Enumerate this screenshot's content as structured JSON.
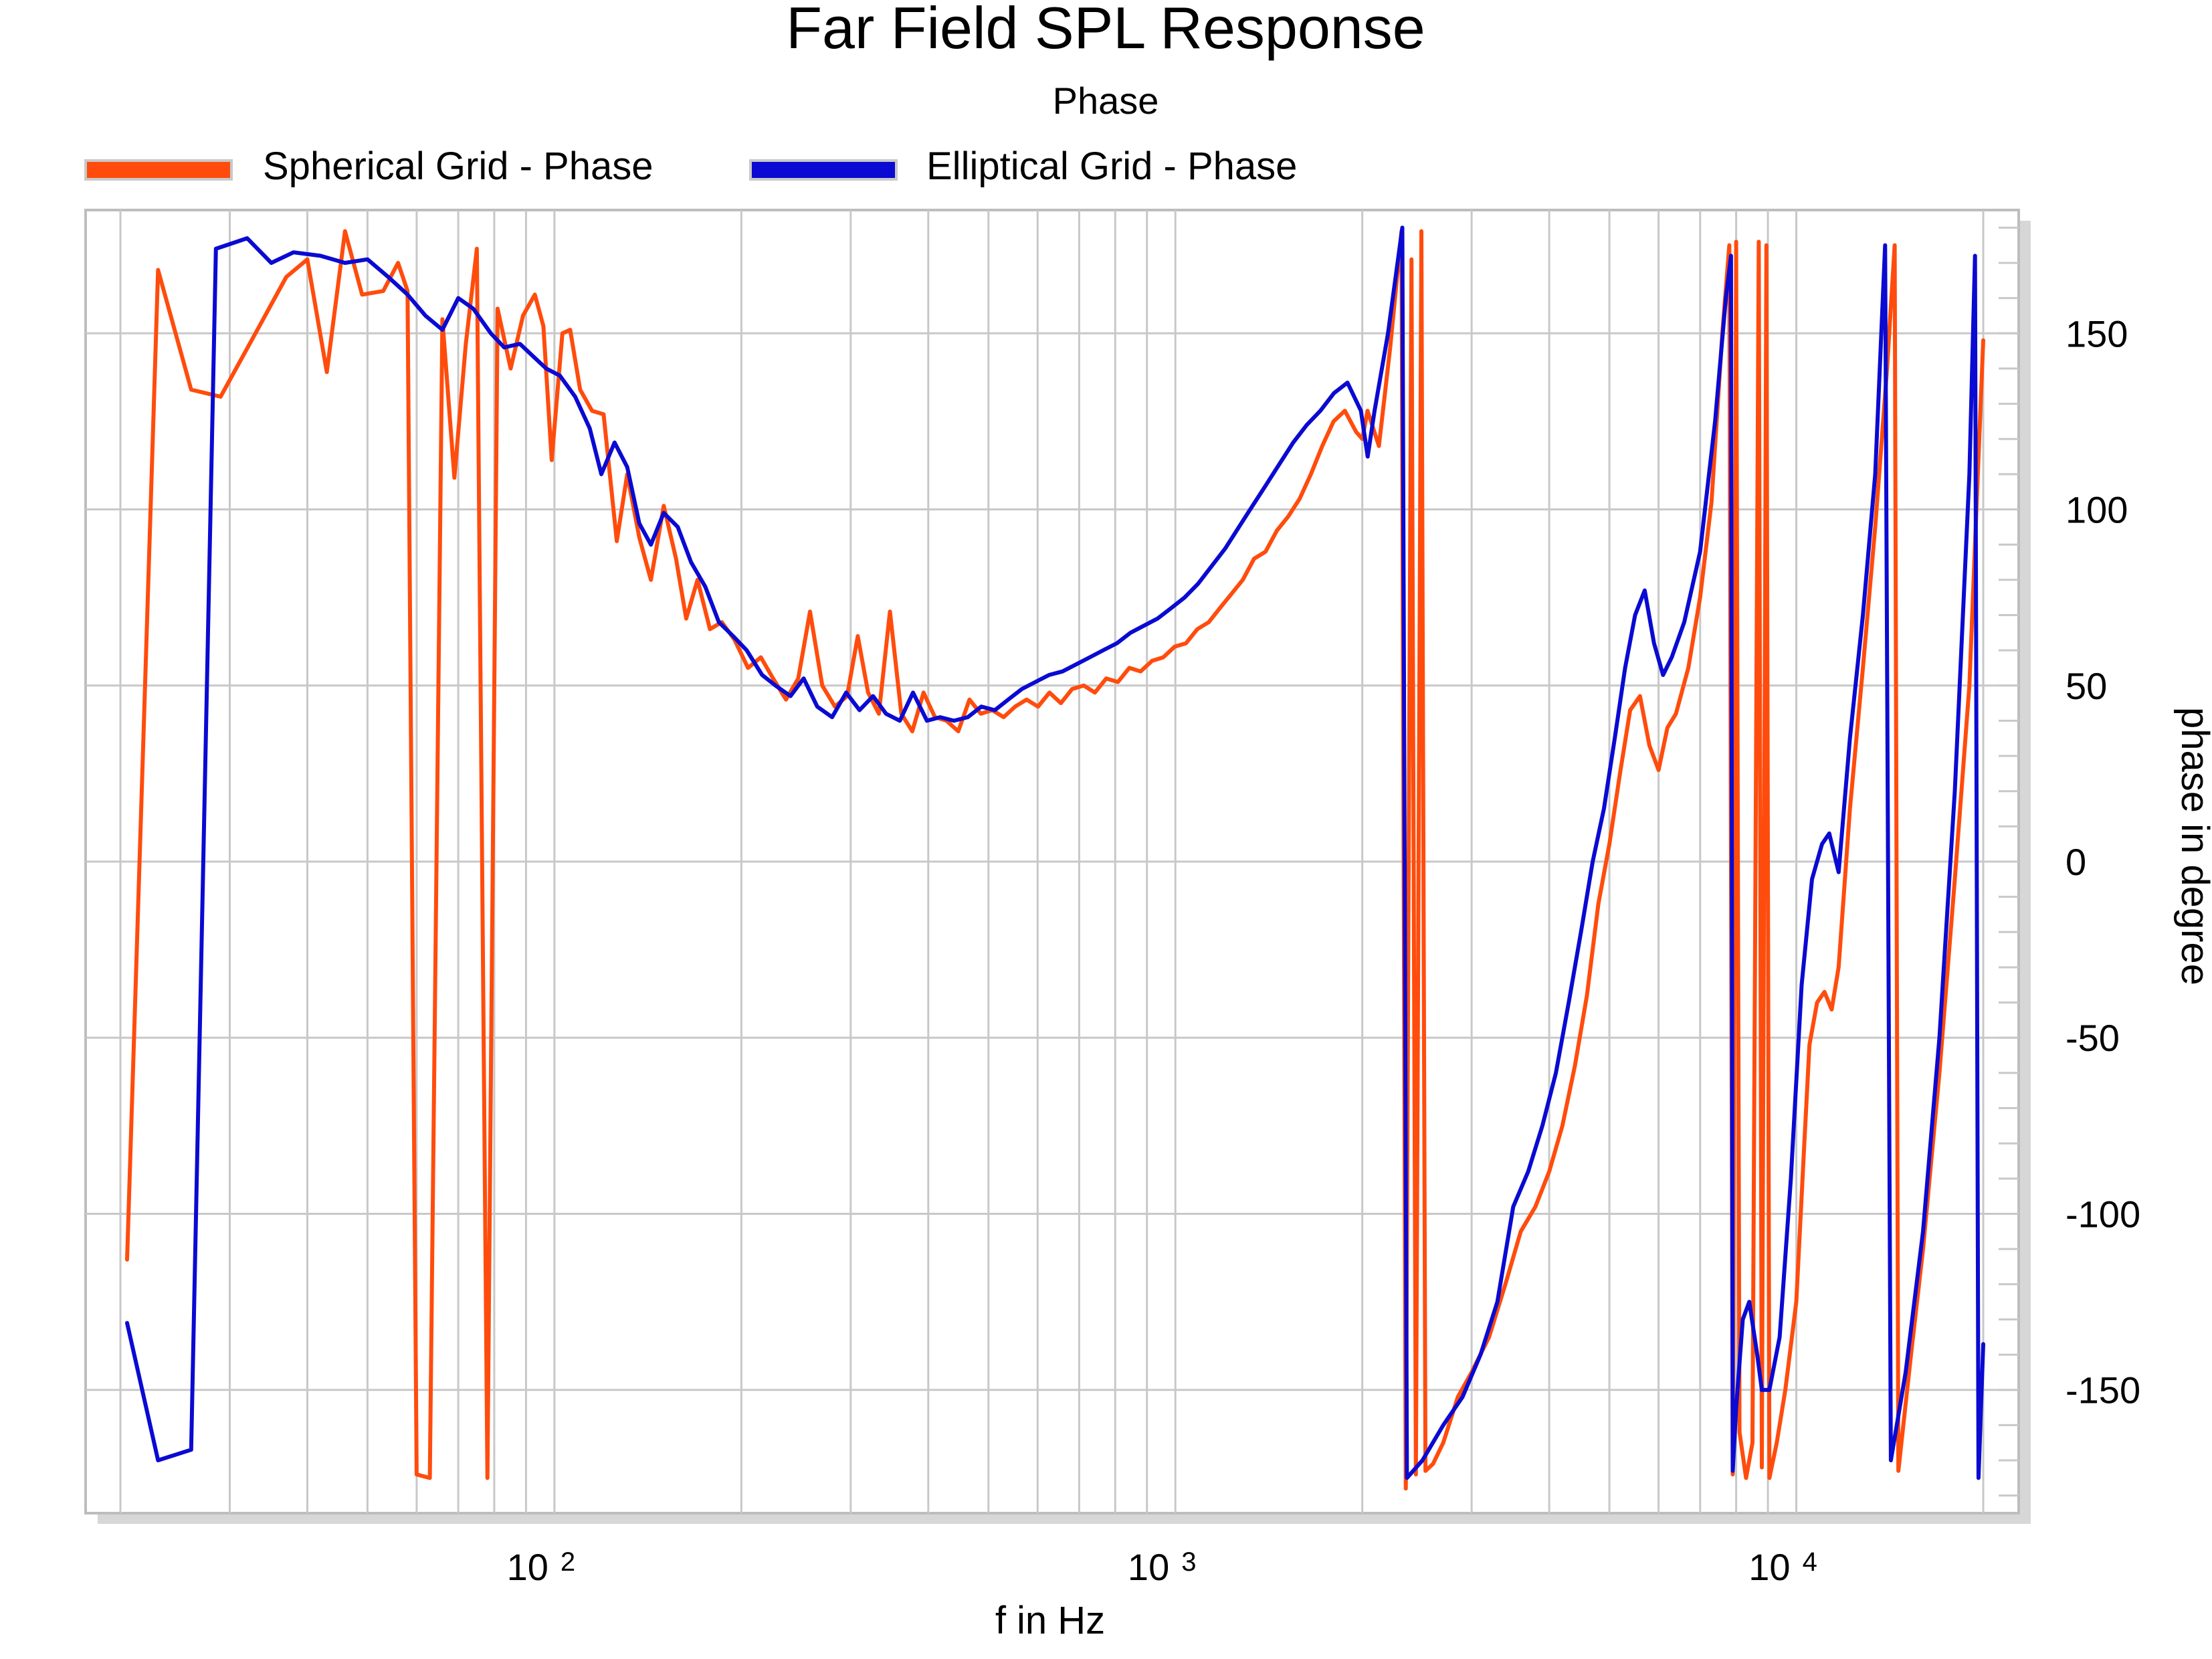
{
  "chart_data": {
    "type": "line",
    "title": "Far Field SPL Response",
    "subtitle": "Phase",
    "xlabel": "f in Hz",
    "ylabel": "phase in degree",
    "x_scale": "log",
    "xlim": [
      20,
      20000
    ],
    "ylim": [
      -185,
      185
    ],
    "x_ticks": [
      {
        "value": 100,
        "base": "10",
        "exp": "2"
      },
      {
        "value": 1000,
        "base": "10",
        "exp": "3"
      },
      {
        "value": 10000,
        "base": "10",
        "exp": "4"
      }
    ],
    "y_ticks": [
      150,
      100,
      50,
      0,
      -50,
      -100,
      -150
    ],
    "grid": true,
    "legend_position": "top-left",
    "series": [
      {
        "name": "Spherical Grid - Phase",
        "color": "#ff4c0d",
        "points": [
          [
            20.5,
            -113
          ],
          [
            23,
            168
          ],
          [
            26,
            134
          ],
          [
            29,
            132
          ],
          [
            33,
            150
          ],
          [
            37,
            166
          ],
          [
            40,
            171
          ],
          [
            43,
            139
          ],
          [
            46,
            179
          ],
          [
            49,
            161
          ],
          [
            53,
            162
          ],
          [
            56,
            170
          ],
          [
            58,
            162
          ],
          [
            60,
            -174
          ],
          [
            63,
            -175
          ],
          [
            66,
            154
          ],
          [
            69,
            109
          ],
          [
            72,
            147
          ],
          [
            75,
            174
          ],
          [
            78,
            -175
          ],
          [
            81,
            157
          ],
          [
            85,
            140
          ],
          [
            89,
            155
          ],
          [
            93,
            161
          ],
          [
            96,
            152
          ],
          [
            99,
            114
          ],
          [
            103,
            150
          ],
          [
            106,
            151
          ],
          [
            110,
            134
          ],
          [
            115,
            128
          ],
          [
            120,
            127
          ],
          [
            126,
            91
          ],
          [
            131,
            110
          ],
          [
            137,
            92
          ],
          [
            143,
            80
          ],
          [
            150,
            101
          ],
          [
            157,
            86
          ],
          [
            163,
            69
          ],
          [
            170,
            80
          ],
          [
            178,
            66
          ],
          [
            186,
            68
          ],
          [
            195,
            63
          ],
          [
            205,
            55
          ],
          [
            215,
            58
          ],
          [
            225,
            52
          ],
          [
            236,
            46
          ],
          [
            247,
            52
          ],
          [
            258,
            71
          ],
          [
            270,
            50
          ],
          [
            283,
            44
          ],
          [
            296,
            47
          ],
          [
            308,
            64
          ],
          [
            320,
            48
          ],
          [
            333,
            42
          ],
          [
            347,
            71
          ],
          [
            362,
            42
          ],
          [
            377,
            37
          ],
          [
            393,
            48
          ],
          [
            410,
            41
          ],
          [
            428,
            40
          ],
          [
            447,
            37
          ],
          [
            466,
            46
          ],
          [
            486,
            42
          ],
          [
            507,
            43
          ],
          [
            529,
            41
          ],
          [
            552,
            44
          ],
          [
            576,
            46
          ],
          [
            601,
            44
          ],
          [
            627,
            48
          ],
          [
            654,
            45
          ],
          [
            682,
            49
          ],
          [
            712,
            50
          ],
          [
            742,
            48
          ],
          [
            774,
            52
          ],
          [
            808,
            51
          ],
          [
            843,
            55
          ],
          [
            879,
            54
          ],
          [
            917,
            57
          ],
          [
            956,
            58
          ],
          [
            997,
            61
          ],
          [
            1040,
            62
          ],
          [
            1085,
            66
          ],
          [
            1132,
            68
          ],
          [
            1180,
            72
          ],
          [
            1231,
            76
          ],
          [
            1284,
            80
          ],
          [
            1339,
            86
          ],
          [
            1397,
            88
          ],
          [
            1457,
            94
          ],
          [
            1520,
            98
          ],
          [
            1585,
            103
          ],
          [
            1653,
            110
          ],
          [
            1724,
            118
          ],
          [
            1798,
            125
          ],
          [
            1875,
            128
          ],
          [
            1955,
            122
          ],
          [
            2000,
            120
          ],
          [
            2039,
            128
          ],
          [
            2127,
            118
          ],
          [
            2218,
            146
          ],
          [
            2313,
            179
          ],
          [
            2350,
            -178
          ],
          [
            2400,
            171
          ],
          [
            2440,
            -174
          ],
          [
            2490,
            179
          ],
          [
            2528,
            -173
          ],
          [
            2600,
            -171
          ],
          [
            2700,
            -165
          ],
          [
            2850,
            -152
          ],
          [
            3000,
            -145
          ],
          [
            3200,
            -135
          ],
          [
            3400,
            -120
          ],
          [
            3600,
            -105
          ],
          [
            3800,
            -98
          ],
          [
            4000,
            -88
          ],
          [
            4200,
            -75
          ],
          [
            4400,
            -58
          ],
          [
            4600,
            -38
          ],
          [
            4800,
            -12
          ],
          [
            5000,
            5
          ],
          [
            5200,
            25
          ],
          [
            5400,
            43
          ],
          [
            5600,
            47
          ],
          [
            5800,
            33
          ],
          [
            6000,
            26
          ],
          [
            6200,
            38
          ],
          [
            6400,
            42
          ],
          [
            6700,
            55
          ],
          [
            7000,
            75
          ],
          [
            7300,
            102
          ],
          [
            7600,
            150
          ],
          [
            7800,
            175
          ],
          [
            7900,
            -174
          ],
          [
            8000,
            176
          ],
          [
            8100,
            -162
          ],
          [
            8300,
            -175
          ],
          [
            8500,
            -165
          ],
          [
            8700,
            176
          ],
          [
            8800,
            -172
          ],
          [
            8950,
            175
          ],
          [
            9050,
            -175
          ],
          [
            9300,
            -165
          ],
          [
            9600,
            -150
          ],
          [
            10000,
            -125
          ],
          [
            10300,
            -80
          ],
          [
            10500,
            -52
          ],
          [
            10800,
            -40
          ],
          [
            11100,
            -37
          ],
          [
            11400,
            -42
          ],
          [
            11700,
            -30
          ],
          [
            12200,
            15
          ],
          [
            12800,
            55
          ],
          [
            13400,
            95
          ],
          [
            14000,
            140
          ],
          [
            14400,
            175
          ],
          [
            14600,
            -173
          ],
          [
            15300,
            -140
          ],
          [
            16000,
            -110
          ],
          [
            17000,
            -60
          ],
          [
            18000,
            -5
          ],
          [
            19000,
            50
          ],
          [
            19600,
            110
          ],
          [
            20000,
            148
          ]
        ]
      },
      {
        "name": "Elliptical Grid - Phase",
        "color": "#0a0ad2",
        "points": [
          [
            20.5,
            -131
          ],
          [
            23,
            -170
          ],
          [
            26,
            -167
          ],
          [
            28.5,
            174
          ],
          [
            32,
            177
          ],
          [
            35,
            170
          ],
          [
            38,
            173
          ],
          [
            42,
            172
          ],
          [
            46,
            170
          ],
          [
            50,
            171
          ],
          [
            54,
            166
          ],
          [
            58,
            161
          ],
          [
            62,
            155
          ],
          [
            66,
            151
          ],
          [
            70,
            160
          ],
          [
            74,
            157
          ],
          [
            79,
            150
          ],
          [
            83,
            146
          ],
          [
            88,
            147
          ],
          [
            93,
            143
          ],
          [
            97,
            140
          ],
          [
            102,
            138
          ],
          [
            108,
            132
          ],
          [
            114,
            123
          ],
          [
            119,
            110
          ],
          [
            125,
            119
          ],
          [
            131,
            112
          ],
          [
            137,
            96
          ],
          [
            143,
            90
          ],
          [
            150,
            99
          ],
          [
            158,
            95
          ],
          [
            166,
            85
          ],
          [
            175,
            78
          ],
          [
            184,
            68
          ],
          [
            194,
            64
          ],
          [
            204,
            60
          ],
          [
            216,
            53
          ],
          [
            227,
            50
          ],
          [
            240,
            47
          ],
          [
            252,
            52
          ],
          [
            265,
            44
          ],
          [
            280,
            41
          ],
          [
            295,
            48
          ],
          [
            310,
            43
          ],
          [
            326,
            47
          ],
          [
            342,
            42
          ],
          [
            360,
            40
          ],
          [
            378,
            48
          ],
          [
            398,
            40
          ],
          [
            418,
            41
          ],
          [
            440,
            40
          ],
          [
            463,
            41
          ],
          [
            487,
            44
          ],
          [
            512,
            43
          ],
          [
            538,
            46
          ],
          [
            566,
            49
          ],
          [
            595,
            51
          ],
          [
            626,
            53
          ],
          [
            658,
            54
          ],
          [
            692,
            56
          ],
          [
            728,
            58
          ],
          [
            765,
            60
          ],
          [
            805,
            62
          ],
          [
            847,
            65
          ],
          [
            890,
            67
          ],
          [
            936,
            69
          ],
          [
            985,
            72
          ],
          [
            1035,
            75
          ],
          [
            1089,
            79
          ],
          [
            1145,
            84
          ],
          [
            1204,
            89
          ],
          [
            1266,
            95
          ],
          [
            1331,
            101
          ],
          [
            1400,
            107
          ],
          [
            1472,
            113
          ],
          [
            1548,
            119
          ],
          [
            1628,
            124
          ],
          [
            1712,
            128
          ],
          [
            1800,
            133
          ],
          [
            1893,
            136
          ],
          [
            1990,
            128
          ],
          [
            2040,
            115
          ],
          [
            2093,
            128
          ],
          [
            2200,
            150
          ],
          [
            2320,
            180
          ],
          [
            2360,
            -175
          ],
          [
            2500,
            -170
          ],
          [
            2700,
            -160
          ],
          [
            2900,
            -152
          ],
          [
            3100,
            -140
          ],
          [
            3300,
            -125
          ],
          [
            3500,
            -98
          ],
          [
            3700,
            -88
          ],
          [
            3900,
            -75
          ],
          [
            4100,
            -60
          ],
          [
            4300,
            -40
          ],
          [
            4500,
            -20
          ],
          [
            4700,
            0
          ],
          [
            4900,
            15
          ],
          [
            5100,
            35
          ],
          [
            5300,
            55
          ],
          [
            5500,
            70
          ],
          [
            5700,
            77
          ],
          [
            5900,
            62
          ],
          [
            6100,
            53
          ],
          [
            6300,
            58
          ],
          [
            6600,
            68
          ],
          [
            7000,
            88
          ],
          [
            7400,
            125
          ],
          [
            7700,
            160
          ],
          [
            7850,
            172
          ],
          [
            7900,
            -173
          ],
          [
            8000,
            -155
          ],
          [
            8200,
            -130
          ],
          [
            8400,
            -125
          ],
          [
            8650,
            -140
          ],
          [
            8800,
            -150
          ],
          [
            9050,
            -150
          ],
          [
            9400,
            -135
          ],
          [
            9800,
            -90
          ],
          [
            10200,
            -35
          ],
          [
            10600,
            -5
          ],
          [
            11000,
            5
          ],
          [
            11300,
            8
          ],
          [
            11700,
            -3
          ],
          [
            12200,
            35
          ],
          [
            12800,
            70
          ],
          [
            13400,
            110
          ],
          [
            13900,
            175
          ],
          [
            14200,
            -170
          ],
          [
            15000,
            -145
          ],
          [
            16000,
            -105
          ],
          [
            17000,
            -50
          ],
          [
            18000,
            20
          ],
          [
            19000,
            110
          ],
          [
            19400,
            172
          ],
          [
            19650,
            -175
          ],
          [
            20000,
            -137
          ]
        ]
      }
    ]
  }
}
